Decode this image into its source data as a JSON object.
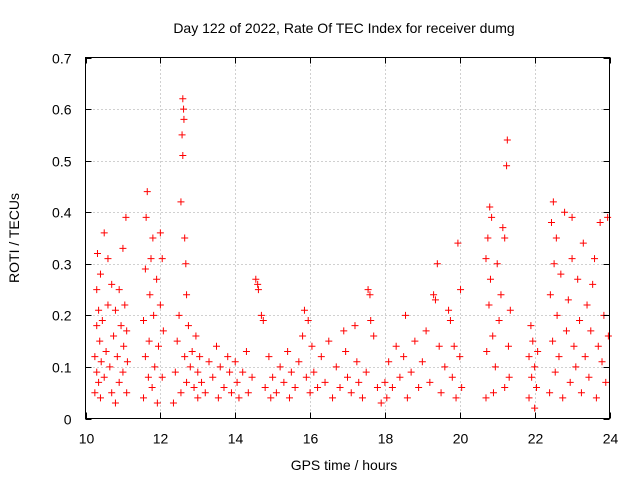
{
  "chart_data": {
    "type": "scatter",
    "title": "Day 122 of 2022, Rate Of TEC Index for receiver dumg",
    "xlabel": "GPS time / hours",
    "ylabel": "ROTI / TECUs",
    "xlim": [
      10,
      24
    ],
    "ylim": [
      0,
      0.7
    ],
    "xticks": [
      10,
      12,
      14,
      16,
      18,
      20,
      22,
      24
    ],
    "yticks": [
      0,
      0.1,
      0.2,
      0.3,
      0.4,
      0.5,
      0.6,
      0.7
    ],
    "xtick_labels": [
      "10",
      "12",
      "14",
      "16",
      "18",
      "20",
      "22",
      "24"
    ],
    "ytick_labels": [
      "0",
      "0.1",
      "0.2",
      "0.3",
      "0.4",
      "0.5",
      "0.6",
      "0.7"
    ],
    "grid": true,
    "marker": "plus",
    "color": "#ff0000",
    "series": [
      {
        "points": [
          [
            10.25,
            0.05
          ],
          [
            10.25,
            0.12
          ],
          [
            10.3,
            0.09
          ],
          [
            10.3,
            0.18
          ],
          [
            10.3,
            0.25
          ],
          [
            10.32,
            0.32
          ],
          [
            10.35,
            0.07
          ],
          [
            10.35,
            0.21
          ],
          [
            10.38,
            0.15
          ],
          [
            10.4,
            0.04
          ],
          [
            10.4,
            0.28
          ],
          [
            10.42,
            0.11
          ],
          [
            10.45,
            0.19
          ],
          [
            10.5,
            0.36
          ],
          [
            10.5,
            0.08
          ],
          [
            10.55,
            0.13
          ],
          [
            10.6,
            0.31
          ],
          [
            10.6,
            0.22
          ],
          [
            10.65,
            0.1
          ],
          [
            10.7,
            0.05
          ],
          [
            10.7,
            0.26
          ],
          [
            10.75,
            0.16
          ],
          [
            10.8,
            0.03
          ],
          [
            10.8,
            0.21
          ],
          [
            10.85,
            0.12
          ],
          [
            10.9,
            0.07
          ],
          [
            10.9,
            0.25
          ],
          [
            10.95,
            0.18
          ],
          [
            11.0,
            0.33
          ],
          [
            11.0,
            0.09
          ],
          [
            11.02,
            0.14
          ],
          [
            11.05,
            0.22
          ],
          [
            11.08,
            0.39
          ],
          [
            11.1,
            0.05
          ],
          [
            11.1,
            0.17
          ],
          [
            11.12,
            0.11
          ],
          [
            11.55,
            0.04
          ],
          [
            11.55,
            0.19
          ],
          [
            11.6,
            0.12
          ],
          [
            11.6,
            0.29
          ],
          [
            11.62,
            0.39
          ],
          [
            11.65,
            0.44
          ],
          [
            11.68,
            0.08
          ],
          [
            11.7,
            0.15
          ],
          [
            11.72,
            0.24
          ],
          [
            11.75,
            0.31
          ],
          [
            11.78,
            0.06
          ],
          [
            11.8,
            0.35
          ],
          [
            11.82,
            0.2
          ],
          [
            11.85,
            0.1
          ],
          [
            11.9,
            0.27
          ],
          [
            11.92,
            0.03
          ],
          [
            11.95,
            0.14
          ],
          [
            12.0,
            0.22
          ],
          [
            12.0,
            0.36
          ],
          [
            12.05,
            0.08
          ],
          [
            12.05,
            0.31
          ],
          [
            12.08,
            0.17
          ],
          [
            12.35,
            0.03
          ],
          [
            12.4,
            0.09
          ],
          [
            12.45,
            0.15
          ],
          [
            12.5,
            0.2
          ],
          [
            12.55,
            0.05
          ],
          [
            12.55,
            0.42
          ],
          [
            12.58,
            0.55
          ],
          [
            12.6,
            0.51
          ],
          [
            12.6,
            0.62
          ],
          [
            12.62,
            0.6
          ],
          [
            12.63,
            0.58
          ],
          [
            12.65,
            0.12
          ],
          [
            12.65,
            0.35
          ],
          [
            12.68,
            0.3
          ],
          [
            12.7,
            0.24
          ],
          [
            12.7,
            0.07
          ],
          [
            12.75,
            0.18
          ],
          [
            12.8,
            0.1
          ],
          [
            12.85,
            0.13
          ],
          [
            12.9,
            0.06
          ],
          [
            12.95,
            0.16
          ],
          [
            13.0,
            0.09
          ],
          [
            13.0,
            0.04
          ],
          [
            13.05,
            0.12
          ],
          [
            13.1,
            0.07
          ],
          [
            13.2,
            0.05
          ],
          [
            13.3,
            0.11
          ],
          [
            13.4,
            0.08
          ],
          [
            13.5,
            0.14
          ],
          [
            13.55,
            0.04
          ],
          [
            13.6,
            0.1
          ],
          [
            13.7,
            0.06
          ],
          [
            13.8,
            0.12
          ],
          [
            13.85,
            0.09
          ],
          [
            13.9,
            0.05
          ],
          [
            14.0,
            0.11
          ],
          [
            14.05,
            0.07
          ],
          [
            14.1,
            0.04
          ],
          [
            14.2,
            0.09
          ],
          [
            14.3,
            0.13
          ],
          [
            14.35,
            0.05
          ],
          [
            14.45,
            0.08
          ],
          [
            14.55,
            0.27
          ],
          [
            14.6,
            0.26
          ],
          [
            14.62,
            0.25
          ],
          [
            14.7,
            0.2
          ],
          [
            14.75,
            0.19
          ],
          [
            14.8,
            0.06
          ],
          [
            14.9,
            0.12
          ],
          [
            14.95,
            0.04
          ],
          [
            15.0,
            0.08
          ],
          [
            15.1,
            0.05
          ],
          [
            15.2,
            0.1
          ],
          [
            15.3,
            0.07
          ],
          [
            15.4,
            0.13
          ],
          [
            15.45,
            0.04
          ],
          [
            15.5,
            0.09
          ],
          [
            15.6,
            0.06
          ],
          [
            15.7,
            0.11
          ],
          [
            15.8,
            0.16
          ],
          [
            15.85,
            0.21
          ],
          [
            15.9,
            0.08
          ],
          [
            15.95,
            0.19
          ],
          [
            16.0,
            0.05
          ],
          [
            16.05,
            0.14
          ],
          [
            16.1,
            0.09
          ],
          [
            16.2,
            0.06
          ],
          [
            16.3,
            0.12
          ],
          [
            16.4,
            0.07
          ],
          [
            16.5,
            0.15
          ],
          [
            16.6,
            0.04
          ],
          [
            16.7,
            0.1
          ],
          [
            16.8,
            0.06
          ],
          [
            16.9,
            0.17
          ],
          [
            16.95,
            0.13
          ],
          [
            17.0,
            0.08
          ],
          [
            17.1,
            0.05
          ],
          [
            17.2,
            0.18
          ],
          [
            17.25,
            0.11
          ],
          [
            17.3,
            0.07
          ],
          [
            17.4,
            0.04
          ],
          [
            17.5,
            0.09
          ],
          [
            17.55,
            0.25
          ],
          [
            17.6,
            0.24
          ],
          [
            17.62,
            0.19
          ],
          [
            17.7,
            0.16
          ],
          [
            17.8,
            0.06
          ],
          [
            17.9,
            0.03
          ],
          [
            18.0,
            0.07
          ],
          [
            18.05,
            0.04
          ],
          [
            18.1,
            0.11
          ],
          [
            18.2,
            0.06
          ],
          [
            18.3,
            0.14
          ],
          [
            18.4,
            0.08
          ],
          [
            18.5,
            0.12
          ],
          [
            18.55,
            0.2
          ],
          [
            18.6,
            0.04
          ],
          [
            18.7,
            0.09
          ],
          [
            18.8,
            0.15
          ],
          [
            18.9,
            0.06
          ],
          [
            19.0,
            0.11
          ],
          [
            19.1,
            0.17
          ],
          [
            19.2,
            0.07
          ],
          [
            19.3,
            0.24
          ],
          [
            19.35,
            0.23
          ],
          [
            19.4,
            0.3
          ],
          [
            19.45,
            0.14
          ],
          [
            19.5,
            0.05
          ],
          [
            19.6,
            0.1
          ],
          [
            19.7,
            0.21
          ],
          [
            19.75,
            0.19
          ],
          [
            19.8,
            0.08
          ],
          [
            19.85,
            0.14
          ],
          [
            19.9,
            0.04
          ],
          [
            19.95,
            0.34
          ],
          [
            20.0,
            0.12
          ],
          [
            20.02,
            0.25
          ],
          [
            20.05,
            0.06
          ],
          [
            20.7,
            0.04
          ],
          [
            20.7,
            0.31
          ],
          [
            20.72,
            0.13
          ],
          [
            20.75,
            0.35
          ],
          [
            20.78,
            0.22
          ],
          [
            20.8,
            0.41
          ],
          [
            20.82,
            0.27
          ],
          [
            20.85,
            0.39
          ],
          [
            20.88,
            0.16
          ],
          [
            20.9,
            0.05
          ],
          [
            20.95,
            0.1
          ],
          [
            21.0,
            0.3
          ],
          [
            21.05,
            0.19
          ],
          [
            21.1,
            0.24
          ],
          [
            21.15,
            0.37
          ],
          [
            21.2,
            0.06
          ],
          [
            21.2,
            0.35
          ],
          [
            21.25,
            0.49
          ],
          [
            21.27,
            0.54
          ],
          [
            21.3,
            0.14
          ],
          [
            21.32,
            0.08
          ],
          [
            21.35,
            0.21
          ],
          [
            21.85,
            0.04
          ],
          [
            21.85,
            0.12
          ],
          [
            21.9,
            0.18
          ],
          [
            21.92,
            0.08
          ],
          [
            21.95,
            0.15
          ],
          [
            22.0,
            0.02
          ],
          [
            22.0,
            0.1
          ],
          [
            22.05,
            0.06
          ],
          [
            22.08,
            0.13
          ],
          [
            22.4,
            0.05
          ],
          [
            22.42,
            0.24
          ],
          [
            22.45,
            0.38
          ],
          [
            22.48,
            0.15
          ],
          [
            22.5,
            0.42
          ],
          [
            22.52,
            0.3
          ],
          [
            22.55,
            0.09
          ],
          [
            22.58,
            0.35
          ],
          [
            22.6,
            0.2
          ],
          [
            22.65,
            0.12
          ],
          [
            22.7,
            0.28
          ],
          [
            22.75,
            0.04
          ],
          [
            22.8,
            0.4
          ],
          [
            22.85,
            0.17
          ],
          [
            22.9,
            0.23
          ],
          [
            22.95,
            0.07
          ],
          [
            23.0,
            0.39
          ],
          [
            23.0,
            0.31
          ],
          [
            23.05,
            0.14
          ],
          [
            23.1,
            0.1
          ],
          [
            23.15,
            0.27
          ],
          [
            23.2,
            0.19
          ],
          [
            23.25,
            0.05
          ],
          [
            23.3,
            0.34
          ],
          [
            23.35,
            0.12
          ],
          [
            23.4,
            0.22
          ],
          [
            23.45,
            0.08
          ],
          [
            23.5,
            0.17
          ],
          [
            23.55,
            0.26
          ],
          [
            23.6,
            0.31
          ],
          [
            23.65,
            0.04
          ],
          [
            23.7,
            0.14
          ],
          [
            23.75,
            0.38
          ],
          [
            23.8,
            0.11
          ],
          [
            23.85,
            0.2
          ],
          [
            23.9,
            0.07
          ],
          [
            23.95,
            0.39
          ],
          [
            23.97,
            0.16
          ]
        ]
      }
    ]
  },
  "colors": {
    "marker": "#ff0000",
    "grid": "#a0a0a0",
    "frame": "#000000",
    "background": "#ffffff"
  }
}
